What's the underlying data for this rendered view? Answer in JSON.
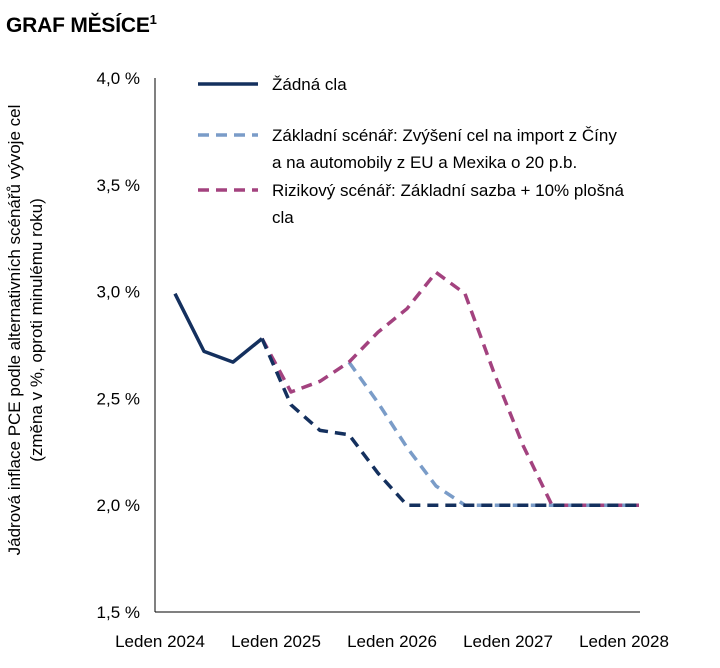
{
  "header": {
    "title": "GRAF MĚSÍCE",
    "footnote_mark": "1"
  },
  "chart_data": {
    "type": "line",
    "ylabel_line1": "Jádrová inflace PCE podle alternativních scénářů vývoje cel",
    "ylabel_line2": "(změna v %, oproti minulému roku)",
    "xlabel": "",
    "ylim": [
      1.5,
      4.0
    ],
    "yticks": [
      "1,5 %",
      "2,0 %",
      "2,5 %",
      "3,0 %",
      "3,5 %",
      "4,0 %"
    ],
    "xticks": [
      "Leden 2024",
      "Leden 2025",
      "Leden 2026",
      "Leden 2027",
      "Leden 2028"
    ],
    "legend_position": "top-right",
    "x_domain": [
      2024.0,
      2028.0
    ],
    "series": [
      {
        "name": "Žádná cla",
        "name_lines": [
          "Žádná cla"
        ],
        "color": "#14305e",
        "style": "solid",
        "x": [
          2024.0,
          2024.25,
          2024.5,
          2024.75
        ],
        "y": [
          2.99,
          2.72,
          2.67,
          2.78
        ]
      },
      {
        "name": "Žádná cla (projekce)",
        "color": "#14305e",
        "style": "dashed",
        "legend": false,
        "x": [
          2024.75,
          2025.0,
          2025.25,
          2025.5,
          2025.75,
          2026.0,
          2026.25,
          2026.5,
          2026.75,
          2027.0,
          2027.25,
          2027.5,
          2027.75,
          2028.0
        ],
        "y": [
          2.78,
          2.47,
          2.35,
          2.33,
          2.15,
          2.0,
          2.0,
          2.0,
          2.0,
          2.0,
          2.0,
          2.0,
          2.0,
          2.0
        ]
      },
      {
        "name": "Základní scénář: Zvýšení cel na import z Číny a na automobily z EU a Mexika o 20 p.b.",
        "name_lines": [
          "Základní scénář: Zvýšení cel na import z Číny",
          "a na automobily z EU a Mexika o 20 p.b."
        ],
        "color": "#7a9cc8",
        "style": "dashed",
        "x": [
          2025.5,
          2025.75,
          2026.0,
          2026.25,
          2026.5,
          2026.75,
          2027.0,
          2027.25,
          2027.5,
          2027.75,
          2028.0
        ],
        "y": [
          2.67,
          2.48,
          2.27,
          2.09,
          2.0,
          2.0,
          2.0,
          2.0,
          2.0,
          2.0,
          2.0
        ]
      },
      {
        "name": "Rizikový scénář: Základní sazba + 10% plošná cla",
        "name_lines": [
          "Rizikový scénář: Základní sazba + 10% plošná",
          "cla"
        ],
        "color": "#a3427f",
        "style": "dashed",
        "x": [
          2024.75,
          2025.0,
          2025.25,
          2025.5,
          2025.75,
          2026.0,
          2026.25,
          2026.5,
          2026.75,
          2027.0,
          2027.25,
          2027.5,
          2027.75,
          2028.0
        ],
        "y": [
          2.78,
          2.53,
          2.58,
          2.67,
          2.81,
          2.92,
          3.09,
          2.99,
          2.62,
          2.28,
          2.0,
          2.0,
          2.0,
          2.0
        ]
      }
    ]
  }
}
